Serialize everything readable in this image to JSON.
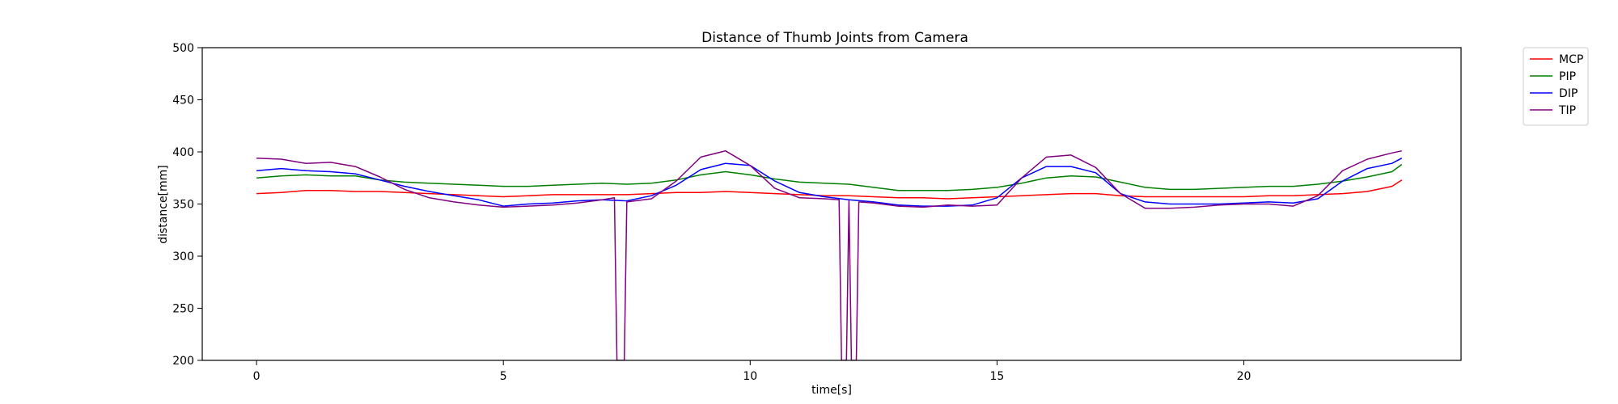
{
  "chart_data": {
    "type": "line",
    "title": "Distance of Thumb Joints from Camera",
    "xlabel": "time[s]",
    "ylabel": "distance[mm]",
    "xlim": [
      -1.1,
      24.4
    ],
    "ylim": [
      200,
      500
    ],
    "xticks": [
      0,
      5,
      10,
      15,
      20
    ],
    "yticks": [
      200,
      250,
      300,
      350,
      400,
      450,
      500
    ],
    "grid": false,
    "legend_position": "outside-top-right",
    "series": [
      {
        "name": "MCP",
        "color": "#ff0000",
        "points": [
          [
            0,
            360
          ],
          [
            0.5,
            361
          ],
          [
            1,
            363
          ],
          [
            1.5,
            363
          ],
          [
            2,
            362
          ],
          [
            2.5,
            362
          ],
          [
            3,
            361
          ],
          [
            3.5,
            360
          ],
          [
            4,
            359
          ],
          [
            4.5,
            358
          ],
          [
            5,
            357
          ],
          [
            5.5,
            358
          ],
          [
            6,
            359
          ],
          [
            6.5,
            359
          ],
          [
            7,
            359
          ],
          [
            7.5,
            359
          ],
          [
            8,
            360
          ],
          [
            8.5,
            361
          ],
          [
            9,
            361
          ],
          [
            9.5,
            362
          ],
          [
            10,
            361
          ],
          [
            10.5,
            360
          ],
          [
            11,
            359
          ],
          [
            11.5,
            358
          ],
          [
            12,
            358
          ],
          [
            12.5,
            357
          ],
          [
            13,
            356
          ],
          [
            13.5,
            356
          ],
          [
            14,
            355
          ],
          [
            14.5,
            356
          ],
          [
            15,
            357
          ],
          [
            15.5,
            358
          ],
          [
            16,
            359
          ],
          [
            16.5,
            360
          ],
          [
            17,
            360
          ],
          [
            17.5,
            358
          ],
          [
            18,
            357
          ],
          [
            18.5,
            357
          ],
          [
            19,
            357
          ],
          [
            19.5,
            357
          ],
          [
            20,
            357
          ],
          [
            20.5,
            358
          ],
          [
            21,
            358
          ],
          [
            21.5,
            359
          ],
          [
            22,
            360
          ],
          [
            22.5,
            362
          ],
          [
            23,
            367
          ],
          [
            23.2,
            373
          ]
        ]
      },
      {
        "name": "PIP",
        "color": "#008000",
        "points": [
          [
            0,
            375
          ],
          [
            0.5,
            377
          ],
          [
            1,
            378
          ],
          [
            1.5,
            377
          ],
          [
            2,
            377
          ],
          [
            2.5,
            373
          ],
          [
            3,
            371
          ],
          [
            3.5,
            370
          ],
          [
            4,
            369
          ],
          [
            4.5,
            368
          ],
          [
            5,
            367
          ],
          [
            5.5,
            367
          ],
          [
            6,
            368
          ],
          [
            6.5,
            369
          ],
          [
            7,
            370
          ],
          [
            7.5,
            369
          ],
          [
            8,
            370
          ],
          [
            8.5,
            373
          ],
          [
            9,
            378
          ],
          [
            9.5,
            381
          ],
          [
            10,
            378
          ],
          [
            10.5,
            374
          ],
          [
            11,
            371
          ],
          [
            11.5,
            370
          ],
          [
            12,
            369
          ],
          [
            12.5,
            366
          ],
          [
            13,
            363
          ],
          [
            13.5,
            363
          ],
          [
            14,
            363
          ],
          [
            14.5,
            364
          ],
          [
            15,
            366
          ],
          [
            15.5,
            370
          ],
          [
            16,
            375
          ],
          [
            16.5,
            377
          ],
          [
            17,
            376
          ],
          [
            17.5,
            371
          ],
          [
            18,
            366
          ],
          [
            18.5,
            364
          ],
          [
            19,
            364
          ],
          [
            19.5,
            365
          ],
          [
            20,
            366
          ],
          [
            20.5,
            367
          ],
          [
            21,
            367
          ],
          [
            21.5,
            369
          ],
          [
            22,
            372
          ],
          [
            22.5,
            376
          ],
          [
            23,
            381
          ],
          [
            23.2,
            388
          ]
        ]
      },
      {
        "name": "DIP",
        "color": "#0000ff",
        "points": [
          [
            0,
            382
          ],
          [
            0.5,
            384
          ],
          [
            1,
            382
          ],
          [
            1.5,
            381
          ],
          [
            2,
            379
          ],
          [
            2.5,
            373
          ],
          [
            3,
            367
          ],
          [
            3.5,
            362
          ],
          [
            4,
            358
          ],
          [
            4.5,
            354
          ],
          [
            5,
            348
          ],
          [
            5.5,
            350
          ],
          [
            6,
            351
          ],
          [
            6.5,
            353
          ],
          [
            7,
            354
          ],
          [
            7.5,
            353
          ],
          [
            8,
            358
          ],
          [
            8.5,
            368
          ],
          [
            9,
            383
          ],
          [
            9.5,
            389
          ],
          [
            10,
            387
          ],
          [
            10.5,
            372
          ],
          [
            11,
            361
          ],
          [
            11.5,
            357
          ],
          [
            12,
            354
          ],
          [
            12.5,
            352
          ],
          [
            13,
            349
          ],
          [
            13.5,
            348
          ],
          [
            14,
            348
          ],
          [
            14.5,
            349
          ],
          [
            15,
            356
          ],
          [
            15.5,
            375
          ],
          [
            16,
            386
          ],
          [
            16.5,
            386
          ],
          [
            17,
            380
          ],
          [
            17.5,
            360
          ],
          [
            18,
            352
          ],
          [
            18.5,
            350
          ],
          [
            19,
            350
          ],
          [
            19.5,
            350
          ],
          [
            20,
            351
          ],
          [
            20.5,
            352
          ],
          [
            21,
            351
          ],
          [
            21.5,
            355
          ],
          [
            22,
            372
          ],
          [
            22.5,
            384
          ],
          [
            23,
            389
          ],
          [
            23.2,
            394
          ]
        ]
      },
      {
        "name": "TIP",
        "color": "#800080",
        "points": [
          [
            0,
            394
          ],
          [
            0.5,
            393
          ],
          [
            1,
            389
          ],
          [
            1.5,
            390
          ],
          [
            2,
            386
          ],
          [
            2.5,
            376
          ],
          [
            3,
            364
          ],
          [
            3.5,
            356
          ],
          [
            4,
            352
          ],
          [
            4.5,
            349
          ],
          [
            5,
            347
          ],
          [
            5.5,
            348
          ],
          [
            6,
            349
          ],
          [
            6.5,
            351
          ],
          [
            7,
            354
          ],
          [
            7.25,
            356
          ],
          [
            7.3,
            200
          ],
          [
            7.45,
            200
          ],
          [
            7.5,
            352
          ],
          [
            8,
            355
          ],
          [
            8.5,
            372
          ],
          [
            9,
            395
          ],
          [
            9.5,
            401
          ],
          [
            10,
            387
          ],
          [
            10.5,
            365
          ],
          [
            11,
            356
          ],
          [
            11.5,
            355
          ],
          [
            11.8,
            354
          ],
          [
            11.85,
            200
          ],
          [
            11.95,
            200
          ],
          [
            12.0,
            353
          ],
          [
            12.05,
            200
          ],
          [
            12.15,
            200
          ],
          [
            12.2,
            352
          ],
          [
            12.5,
            351
          ],
          [
            13,
            348
          ],
          [
            13.5,
            347
          ],
          [
            14,
            349
          ],
          [
            14.5,
            348
          ],
          [
            15,
            349
          ],
          [
            15.5,
            375
          ],
          [
            16,
            395
          ],
          [
            16.5,
            397
          ],
          [
            17,
            385
          ],
          [
            17.5,
            360
          ],
          [
            18,
            346
          ],
          [
            18.5,
            346
          ],
          [
            19,
            347
          ],
          [
            19.5,
            349
          ],
          [
            20,
            350
          ],
          [
            20.5,
            350
          ],
          [
            21,
            348
          ],
          [
            21.5,
            358
          ],
          [
            22,
            382
          ],
          [
            22.5,
            393
          ],
          [
            23,
            399
          ],
          [
            23.2,
            401
          ]
        ]
      }
    ]
  }
}
